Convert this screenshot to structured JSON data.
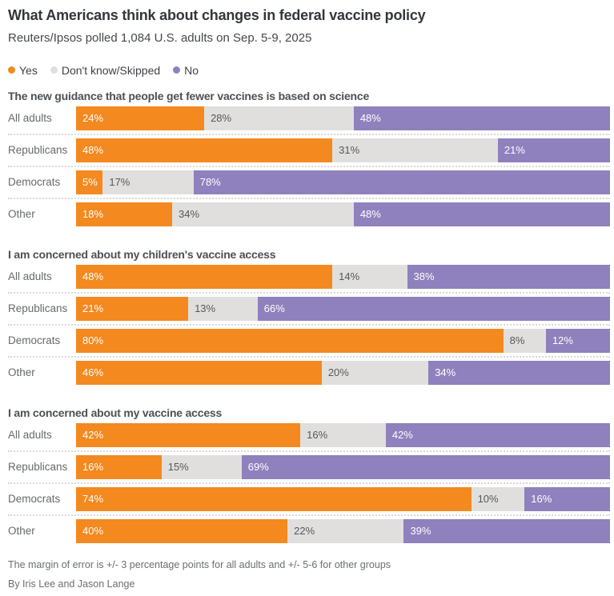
{
  "page": {
    "background": "#FFFFFF"
  },
  "header": {
    "title": "What Americans think about changes in federal vaccine policy",
    "subtitle": "Reuters/Ipsos polled 1,084 U.S. adults on Sep. 5-9, 2025"
  },
  "legend": {
    "items": [
      {
        "label": "Yes",
        "color": "#F3891F",
        "text_color": "#FFFFFF"
      },
      {
        "label": "Don't know/Skipped",
        "color": "#E0DFDE",
        "text_color": "#55585C"
      },
      {
        "label": "No",
        "color": "#8F80BE",
        "text_color": "#FFFFFF"
      }
    ]
  },
  "chart_data": [
    {
      "type": "bar",
      "stacked": true,
      "orientation": "horizontal",
      "unit": "%",
      "xlim": [
        0,
        100
      ],
      "title": "The new guidance that people get fewer vaccines is based on science",
      "categories": [
        "All adults",
        "Republicans",
        "Democrats",
        "Other"
      ],
      "series": [
        {
          "name": "Yes",
          "values": [
            24,
            48,
            5,
            18
          ],
          "labels": [
            "24%",
            "48%",
            "5%",
            "18%"
          ]
        },
        {
          "name": "Don't know/Skipped",
          "values": [
            28,
            31,
            17,
            34
          ],
          "labels": [
            "28%",
            "31%",
            "17%",
            "34%"
          ]
        },
        {
          "name": "No",
          "values": [
            48,
            21,
            78,
            48
          ],
          "labels": [
            "48%",
            "21%",
            "78%",
            "48%"
          ]
        }
      ]
    },
    {
      "type": "bar",
      "stacked": true,
      "orientation": "horizontal",
      "unit": "%",
      "xlim": [
        0,
        100
      ],
      "title": "I am concerned about my children's vaccine access",
      "categories": [
        "All adults",
        "Republicans",
        "Democrats",
        "Other"
      ],
      "series": [
        {
          "name": "Yes",
          "values": [
            48,
            21,
            80,
            46
          ],
          "labels": [
            "48%",
            "21%",
            "80%",
            "46%"
          ]
        },
        {
          "name": "Don't know/Skipped",
          "values": [
            14,
            13,
            8,
            20
          ],
          "labels": [
            "14%",
            "13%",
            "8%",
            "20%"
          ]
        },
        {
          "name": "No",
          "values": [
            38,
            66,
            12,
            34
          ],
          "labels": [
            "38%",
            "66%",
            "12%",
            "34%"
          ]
        }
      ]
    },
    {
      "type": "bar",
      "stacked": true,
      "orientation": "horizontal",
      "unit": "%",
      "xlim": [
        0,
        100
      ],
      "title": "I am concerned about my vaccine access",
      "categories": [
        "All adults",
        "Republicans",
        "Democrats",
        "Other"
      ],
      "series": [
        {
          "name": "Yes",
          "values": [
            42,
            16,
            74,
            40
          ],
          "labels": [
            "42%",
            "16%",
            "74%",
            "40%"
          ]
        },
        {
          "name": "Don't know/Skipped",
          "values": [
            16,
            15,
            10,
            22
          ],
          "labels": [
            "16%",
            "15%",
            "10%",
            "22%"
          ]
        },
        {
          "name": "No",
          "values": [
            42,
            69,
            16,
            39
          ],
          "labels": [
            "42%",
            "69%",
            "16%",
            "39%"
          ]
        }
      ]
    }
  ],
  "footer": {
    "note": "The margin of error is +/- 3 percentage points for all adults and +/- 5-6 for other groups",
    "byline": "By Iris Lee and Jason Lange"
  }
}
